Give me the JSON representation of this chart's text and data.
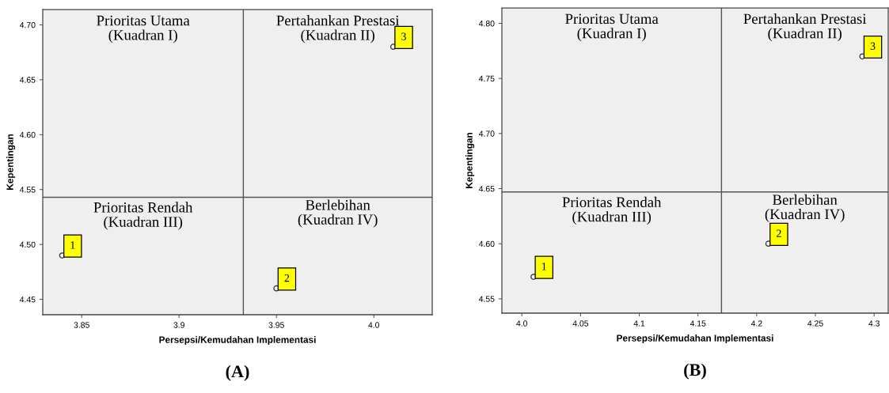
{
  "chart_data": [
    {
      "type": "scatter",
      "title": "(A)",
      "xlabel": "Persepsi/Kemudahan Implementasi",
      "ylabel": "Kepentingan",
      "x": [
        3.84,
        3.95,
        4.01
      ],
      "series": [
        {
          "color": "#333333",
          "values": [
            4.49,
            4.46,
            4.68
          ]
        }
      ],
      "marker": "circle",
      "grid": false,
      "legend": false,
      "xlim": [
        3.83,
        4.03
      ],
      "ylim": [
        4.436,
        4.714
      ],
      "xticks": [
        3.85,
        3.9,
        3.95,
        {
          "value": 4.0,
          "label": "4.0"
        }
      ],
      "yticks": [
        {
          "value": 4.45,
          "label": "4.45"
        },
        {
          "value": 4.5,
          "label": "4.50"
        },
        {
          "value": 4.55,
          "label": "4.55"
        },
        {
          "value": 4.6,
          "label": "4.60"
        },
        {
          "value": 4.65,
          "label": "4.65"
        },
        {
          "value": 4.7,
          "label": "4.70"
        }
      ],
      "ref_lines": [
        {
          "axis": "x",
          "value": 3.933,
          "color": "#555555"
        },
        {
          "axis": "y",
          "value": 4.543,
          "color": "#555555"
        }
      ],
      "annotations": [
        "Prioritas Utama\n(Kuadran I)",
        "Pertahankan Prestasi\n(Kuadran II)",
        "Prioritas Rendah\n(Kuadran III)",
        "Berlebihan\n(Kuadran IV)",
        {
          "text": "1",
          "x": 3.84,
          "y": 4.49
        },
        {
          "text": "2",
          "x": 3.95,
          "y": 4.46
        },
        {
          "text": "3",
          "x": 4.01,
          "y": 4.68
        }
      ]
    },
    {
      "type": "scatter",
      "title": "(B)",
      "xlabel": "Persepsi/Kemudahan Implementasi",
      "ylabel": "Kepentingan",
      "x": [
        4.01,
        4.21,
        4.29
      ],
      "series": [
        {
          "color": "#333333",
          "values": [
            4.57,
            4.6,
            4.77
          ]
        }
      ],
      "marker": "circle",
      "grid": false,
      "legend": false,
      "xlim": [
        3.983,
        4.312
      ],
      "ylim": [
        4.537,
        4.814
      ],
      "xticks": [
        {
          "value": 4.0,
          "label": "4.0"
        },
        4.05,
        4.1,
        4.15,
        4.2,
        4.25,
        4.3
      ],
      "yticks": [
        {
          "value": 4.55,
          "label": "4.55"
        },
        {
          "value": 4.6,
          "label": "4.60"
        },
        {
          "value": 4.65,
          "label": "4.65"
        },
        {
          "value": 4.7,
          "label": "4.70"
        },
        {
          "value": 4.75,
          "label": "4.75"
        },
        {
          "value": 4.8,
          "label": "4.80"
        }
      ],
      "ref_lines": [
        {
          "axis": "x",
          "value": 4.17,
          "color": "#555555"
        },
        {
          "axis": "y",
          "value": 4.647,
          "color": "#555555"
        }
      ],
      "annotations": [
        "Prioritas Utama\n(Kuadran I)",
        "Pertahankan Prestasi\n(Kuadran II)",
        "Prioritas Rendah\n(Kuadran III)",
        "Berlebihan\n(Kuadran IV)",
        {
          "text": "1",
          "x": 4.01,
          "y": 4.57
        },
        {
          "text": "2",
          "x": 4.21,
          "y": 4.6
        },
        {
          "text": "3",
          "x": 4.29,
          "y": 4.77
        }
      ]
    }
  ]
}
